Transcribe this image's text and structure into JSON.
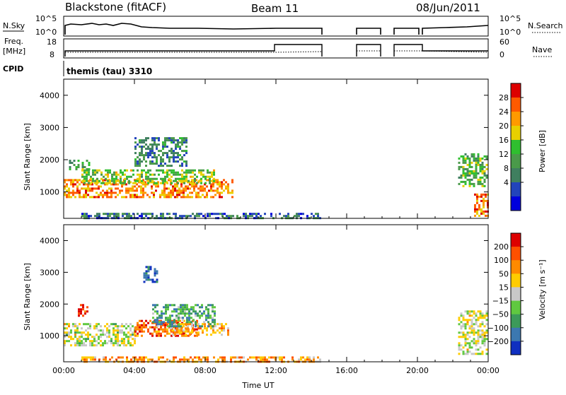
{
  "header": {
    "station": "Blackstone (fitACF)",
    "beam": "Beam 11",
    "date": "08/Jun/2011"
  },
  "status_panels": {
    "nsky_label": "N.Sky",
    "nsearch_label": "N.Search",
    "freq_label": "Freq.",
    "freq_unit": "[MHz]",
    "nave_label": "Nave",
    "cpid_label": "CPID",
    "cpid_text": "themis (tau) 3310",
    "nsky_ticks": [
      "10^5",
      "10^0"
    ],
    "nsearch_ticks": [
      "10^5",
      "10^0"
    ],
    "freq_ticks": [
      "18",
      "8"
    ],
    "nave_ticks": [
      "60",
      "0"
    ]
  },
  "chart_data": [
    {
      "type": "heatmap",
      "name": "power",
      "ylabel": "Slant Range [km]",
      "xlabel": "",
      "colorbar_label": "Power [dB]",
      "ylim": [
        180,
        4500
      ],
      "xlim_hours": [
        0,
        24
      ],
      "y_ticks": [
        "4000",
        "3000",
        "2000",
        "1000"
      ],
      "colorbar_ticks": [
        "28",
        "24",
        "20",
        "16",
        "12",
        "8",
        "4"
      ],
      "colorbar_colors": [
        "#0000dd",
        "#2244bb",
        "#3f7f5f",
        "#4a9a4a",
        "#2fbf2f",
        "#e8d000",
        "#ff9a00",
        "#ff5a00",
        "#dd0000"
      ],
      "echo_regions": [
        {
          "t0": 0.0,
          "t1": 9.5,
          "r0": 850,
          "r1": 1400,
          "level": 0.75
        },
        {
          "t0": 1.0,
          "t1": 8.5,
          "r0": 1300,
          "r1": 1700,
          "level": 0.5
        },
        {
          "t0": 0.3,
          "t1": 1.5,
          "r0": 1700,
          "r1": 2000,
          "level": 0.4
        },
        {
          "t0": 4.0,
          "t1": 7.0,
          "r0": 1800,
          "r1": 2700,
          "level": 0.3
        },
        {
          "t0": 1.0,
          "t1": 14.5,
          "r0": 180,
          "r1": 350,
          "level": 0.25
        },
        {
          "t0": 22.3,
          "t1": 24.0,
          "r0": 1200,
          "r1": 2200,
          "level": 0.45
        },
        {
          "t0": 23.2,
          "t1": 24.0,
          "r0": 250,
          "r1": 950,
          "level": 0.8
        }
      ]
    },
    {
      "type": "heatmap",
      "name": "velocity",
      "ylabel": "Slant Range [km]",
      "xlabel": "Time UT",
      "colorbar_label": "Velocity [m s⁻¹]",
      "ylim": [
        180,
        4500
      ],
      "xlim_hours": [
        0,
        24
      ],
      "y_ticks": [
        "4000",
        "3000",
        "2000",
        "1000"
      ],
      "x_ticks": [
        "00:00",
        "04:00",
        "08:00",
        "12:00",
        "16:00",
        "20:00",
        "00:00"
      ],
      "colorbar_ticks": [
        "200",
        "100",
        "50",
        "15",
        "-15",
        "-50",
        "-100",
        "-200"
      ],
      "colorbar_colors": [
        "#1030c0",
        "#3c78b0",
        "#3c9a5a",
        "#60c840",
        "#c8c8c8",
        "#ffcc00",
        "#ff8a00",
        "#ff5000",
        "#dd0000"
      ],
      "echo_regions": [
        {
          "t0": 0.0,
          "t1": 4.0,
          "r0": 700,
          "r1": 1400,
          "level": 0.5
        },
        {
          "t0": 4.0,
          "t1": 7.5,
          "r0": 1000,
          "r1": 1500,
          "level": 0.8
        },
        {
          "t0": 6.0,
          "t1": 9.3,
          "r0": 1000,
          "r1": 1400,
          "level": 0.65
        },
        {
          "t0": 5.0,
          "t1": 8.5,
          "r0": 1300,
          "r1": 2000,
          "level": 0.3
        },
        {
          "t0": 0.8,
          "t1": 1.3,
          "r0": 1600,
          "r1": 2000,
          "level": 0.95
        },
        {
          "t0": 4.5,
          "t1": 5.3,
          "r0": 2700,
          "r1": 3200,
          "level": 0.1
        },
        {
          "t0": 1.0,
          "t1": 14.5,
          "r0": 180,
          "r1": 350,
          "level": 0.7
        },
        {
          "t0": 22.3,
          "t1": 24.0,
          "r0": 400,
          "r1": 1800,
          "level": 0.5
        }
      ]
    }
  ]
}
